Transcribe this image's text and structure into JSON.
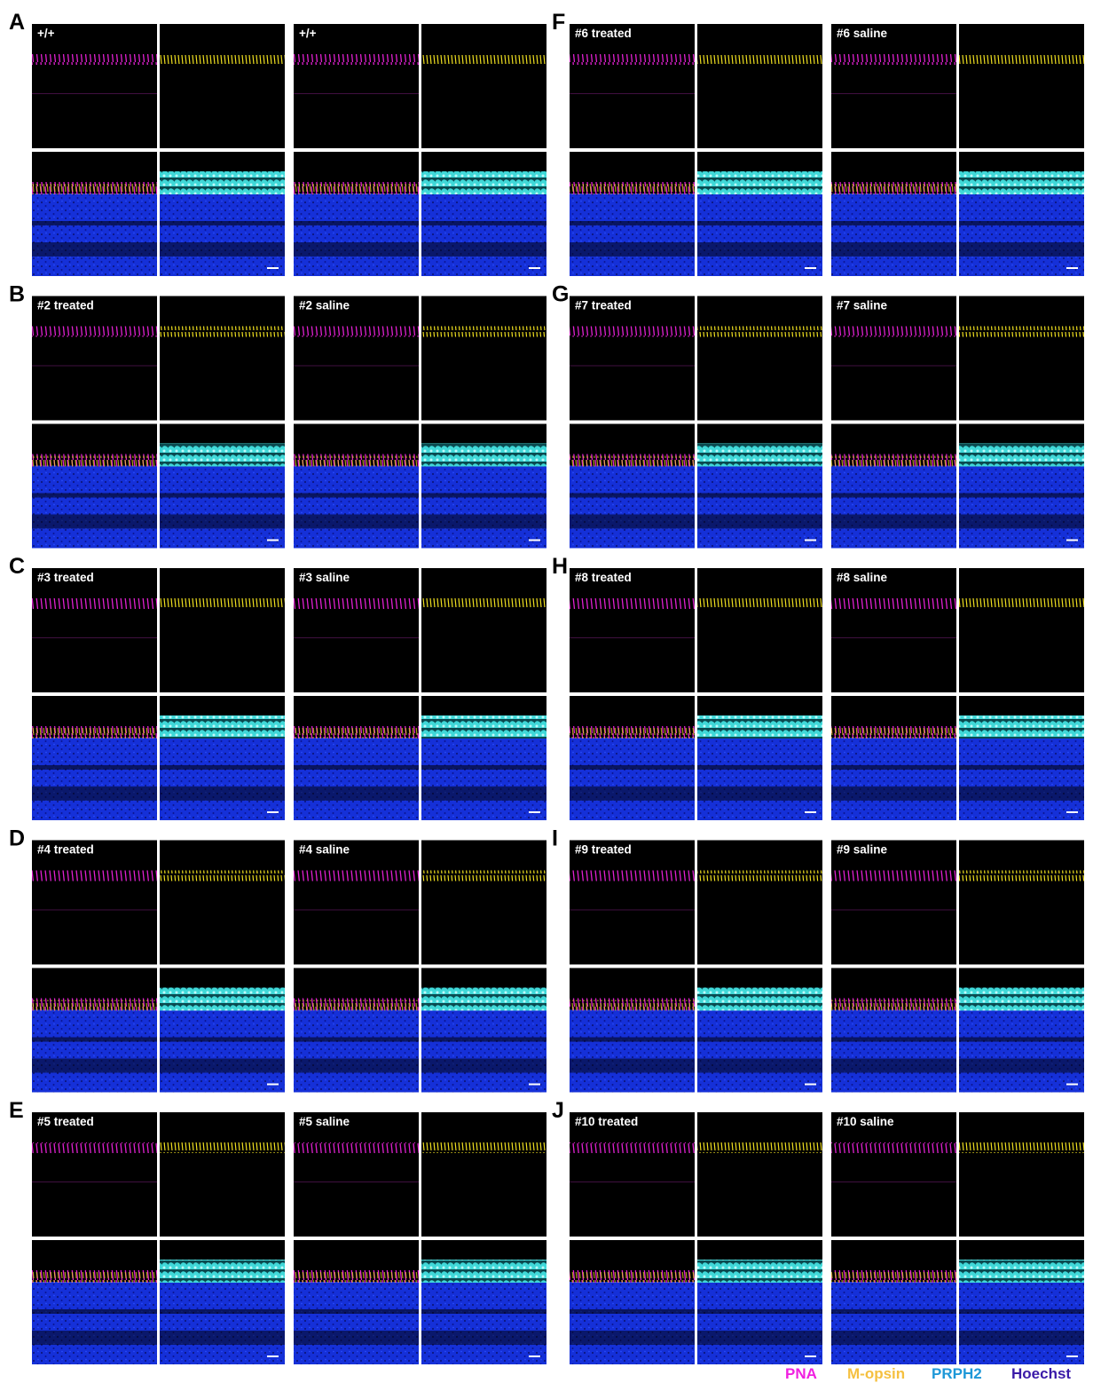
{
  "panels": [
    {
      "letter": "A",
      "groups": [
        {
          "label": "+/+"
        },
        {
          "label": "+/+"
        }
      ]
    },
    {
      "letter": "B",
      "groups": [
        {
          "label": "#2 treated"
        },
        {
          "label": "#2 saline"
        }
      ]
    },
    {
      "letter": "C",
      "groups": [
        {
          "label": "#3 treated"
        },
        {
          "label": "#3 saline"
        }
      ]
    },
    {
      "letter": "D",
      "groups": [
        {
          "label": "#4 treated"
        },
        {
          "label": "#4 saline"
        }
      ]
    },
    {
      "letter": "E",
      "groups": [
        {
          "label": "#5 treated"
        },
        {
          "label": "#5 saline"
        }
      ]
    },
    {
      "letter": "F",
      "groups": [
        {
          "label": "#6 treated"
        },
        {
          "label": "#6 saline"
        }
      ]
    },
    {
      "letter": "G",
      "groups": [
        {
          "label": "#7 treated"
        },
        {
          "label": "#7 saline"
        }
      ]
    },
    {
      "letter": "H",
      "groups": [
        {
          "label": "#8 treated"
        },
        {
          "label": "#8 saline"
        }
      ]
    },
    {
      "letter": "I",
      "groups": [
        {
          "label": "#9 treated"
        },
        {
          "label": "#9 saline"
        }
      ]
    },
    {
      "letter": "J",
      "groups": [
        {
          "label": "#10 treated"
        },
        {
          "label": "#10 saline"
        }
      ]
    }
  ],
  "legend": [
    "PNA",
    "M-opsin",
    "PRPH2",
    "Hoechst"
  ]
}
